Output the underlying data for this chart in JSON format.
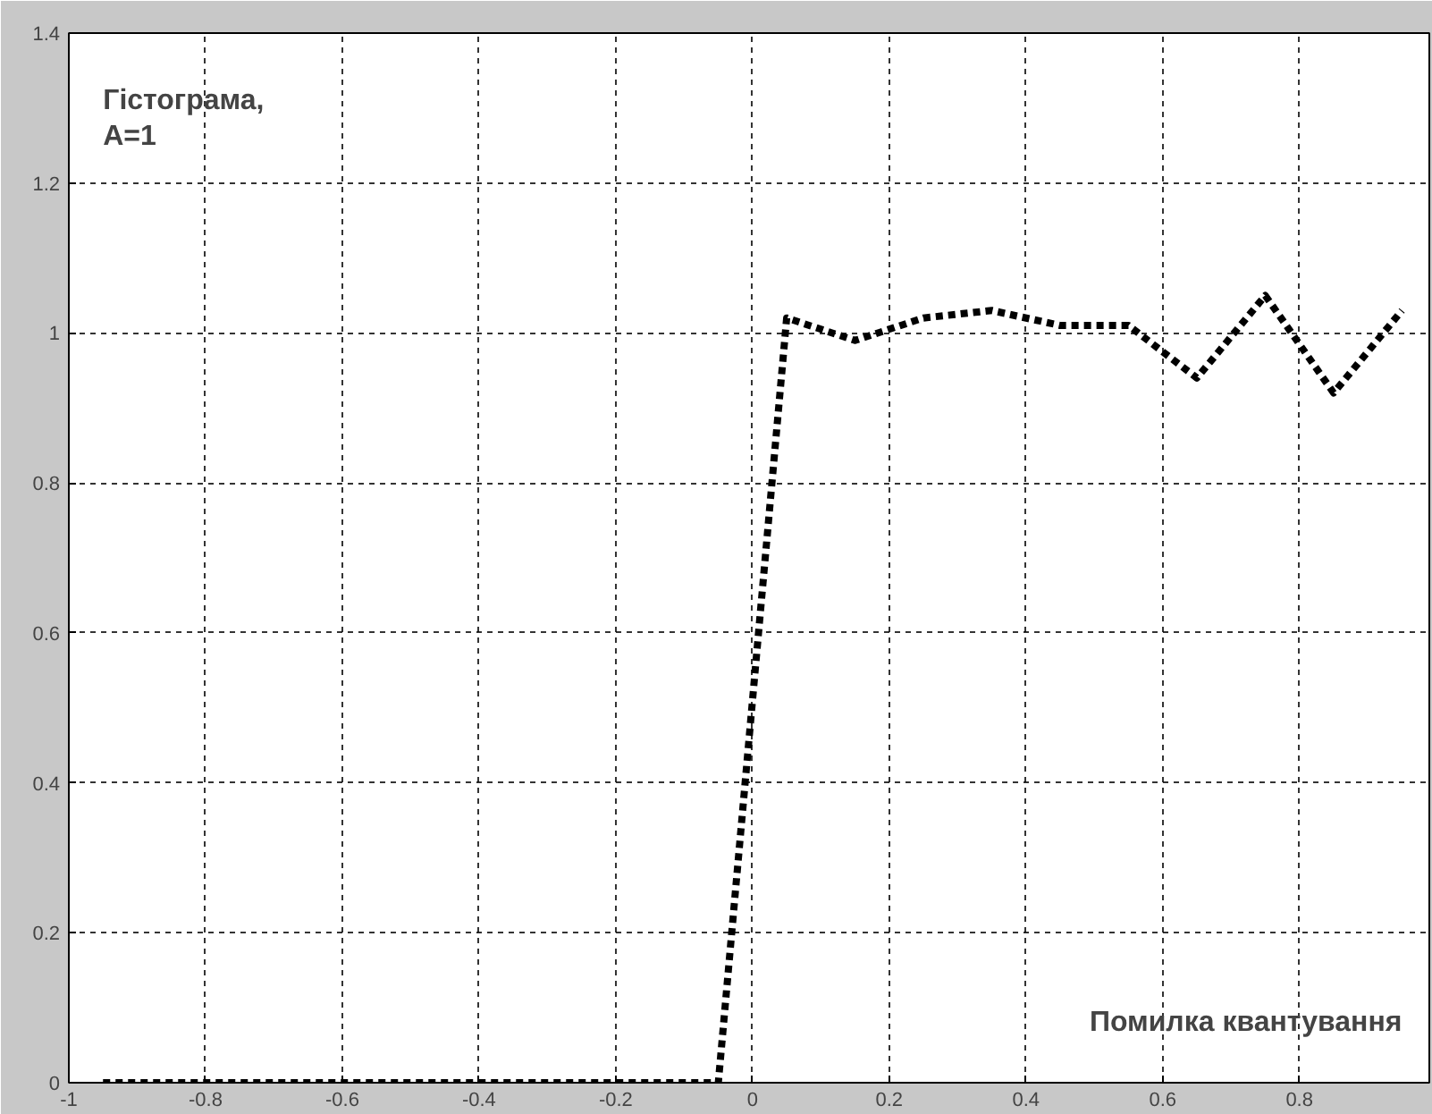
{
  "chart_data": {
    "type": "line",
    "x": [
      -0.95,
      -0.85,
      -0.75,
      -0.65,
      -0.55,
      -0.45,
      -0.35,
      -0.25,
      -0.15,
      -0.05,
      0.05,
      0.15,
      0.25,
      0.35,
      0.45,
      0.55,
      0.65,
      0.75,
      0.85,
      0.95
    ],
    "series": [
      {
        "color": "#000000",
        "values": [
          0,
          0,
          0,
          0,
          0,
          0,
          0,
          0,
          0,
          0,
          1.02,
          0.99,
          1.02,
          1.03,
          1.01,
          1.01,
          0.94,
          1.05,
          0.92,
          1.03
        ]
      }
    ],
    "xlim": [
      -1,
      0.99
    ],
    "ylim": [
      0,
      1.4
    ],
    "xticks": [
      -1,
      -0.8,
      -0.6,
      -0.4,
      -0.2,
      0,
      0.2,
      0.4,
      0.6,
      0.8
    ],
    "yticks": [
      0,
      0.2,
      0.4,
      0.6,
      0.8,
      1,
      1.2,
      1.4
    ],
    "grid": true,
    "line_style": "dotted",
    "marker": "none",
    "annotations": [
      "Гістограма,\nA=1",
      "Помилка квантування"
    ]
  }
}
